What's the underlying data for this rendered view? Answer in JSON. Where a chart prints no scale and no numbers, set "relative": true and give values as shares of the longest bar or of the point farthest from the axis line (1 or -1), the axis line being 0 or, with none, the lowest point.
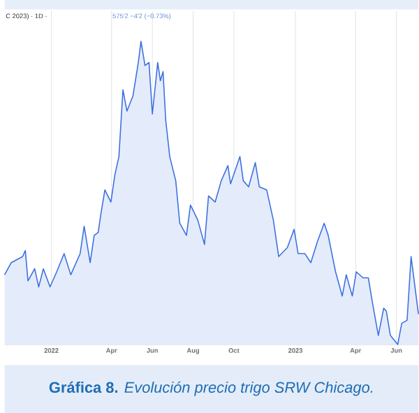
{
  "chart_data": {
    "type": "area",
    "relative": true,
    "title": "**Gráfica 8.** *Evolución precio trigo SRW Chicago.*",
    "annotations": [
      "C 2023) · 1D ·",
      "575'2 −4'2 (−0.73%)"
    ],
    "grid": "x",
    "xlim": [
      "2021-10-23",
      "2023-07-04"
    ],
    "xticks": [
      {
        "value": "2022-01-01",
        "label": "2022"
      },
      {
        "value": "2022-04-01",
        "label": "Apr"
      },
      {
        "value": "2022-06-01",
        "label": "Jun"
      },
      {
        "value": "2022-08-01",
        "label": "Aug"
      },
      {
        "value": "2022-10-01",
        "label": "Oct"
      },
      {
        "value": "2023-01-01",
        "label": "2023"
      },
      {
        "value": "2023-04-01",
        "label": "Apr"
      },
      {
        "value": "2023-06-01",
        "label": "Jun"
      }
    ],
    "series": [
      {
        "color": "#3b6fe0",
        "x": [
          "2021-10-23",
          "2021-11-02",
          "2021-11-19",
          "2021-11-23",
          "2021-11-27",
          "2021-12-07",
          "2021-12-13",
          "2021-12-20",
          "2021-12-30",
          "2022-01-09",
          "2022-01-20",
          "2022-01-30",
          "2022-02-13",
          "2022-02-19",
          "2022-02-28",
          "2022-03-06",
          "2022-03-12",
          "2022-03-16",
          "2022-03-22",
          "2022-03-31",
          "2022-04-06",
          "2022-04-12",
          "2022-04-18",
          "2022-04-24",
          "2022-05-03",
          "2022-05-11",
          "2022-05-15",
          "2022-05-21",
          "2022-05-27",
          "2022-06-01",
          "2022-06-09",
          "2022-06-13",
          "2022-06-17",
          "2022-06-21",
          "2022-06-27",
          "2022-07-06",
          "2022-07-12",
          "2022-07-22",
          "2022-07-28",
          "2022-08-08",
          "2022-08-18",
          "2022-08-24",
          "2022-09-03",
          "2022-09-12",
          "2022-09-22",
          "2022-09-26",
          "2022-10-10",
          "2022-10-15",
          "2022-10-23",
          "2022-11-02",
          "2022-11-08",
          "2022-11-19",
          "2022-11-29",
          "2022-12-07",
          "2022-12-20",
          "2022-12-30",
          "2023-01-05",
          "2023-01-15",
          "2023-01-24",
          "2023-02-03",
          "2023-02-13",
          "2023-02-19",
          "2023-03-02",
          "2023-03-12",
          "2023-03-18",
          "2023-03-27",
          "2023-04-02",
          "2023-04-12",
          "2023-04-20",
          "2023-04-26",
          "2023-05-05",
          "2023-05-13",
          "2023-05-17",
          "2023-05-23",
          "2023-06-03",
          "2023-06-09",
          "2023-06-17",
          "2023-06-23",
          "2023-07-04"
        ],
        "values": [
          0.23,
          0.27,
          0.29,
          0.31,
          0.21,
          0.25,
          0.19,
          0.25,
          0.19,
          0.24,
          0.3,
          0.23,
          0.3,
          0.39,
          0.27,
          0.36,
          0.37,
          0.43,
          0.51,
          0.47,
          0.56,
          0.62,
          0.84,
          0.77,
          0.82,
          0.93,
          1.0,
          0.92,
          0.93,
          0.76,
          0.93,
          0.87,
          0.9,
          0.74,
          0.62,
          0.54,
          0.4,
          0.36,
          0.46,
          0.41,
          0.33,
          0.49,
          0.47,
          0.54,
          0.59,
          0.53,
          0.62,
          0.54,
          0.52,
          0.6,
          0.52,
          0.51,
          0.41,
          0.29,
          0.32,
          0.38,
          0.3,
          0.3,
          0.27,
          0.34,
          0.4,
          0.36,
          0.24,
          0.16,
          0.23,
          0.16,
          0.24,
          0.22,
          0.22,
          0.14,
          0.03,
          0.12,
          0.11,
          0.03,
          0.0,
          0.07,
          0.08,
          0.29,
          0.1
        ]
      }
    ]
  }
}
